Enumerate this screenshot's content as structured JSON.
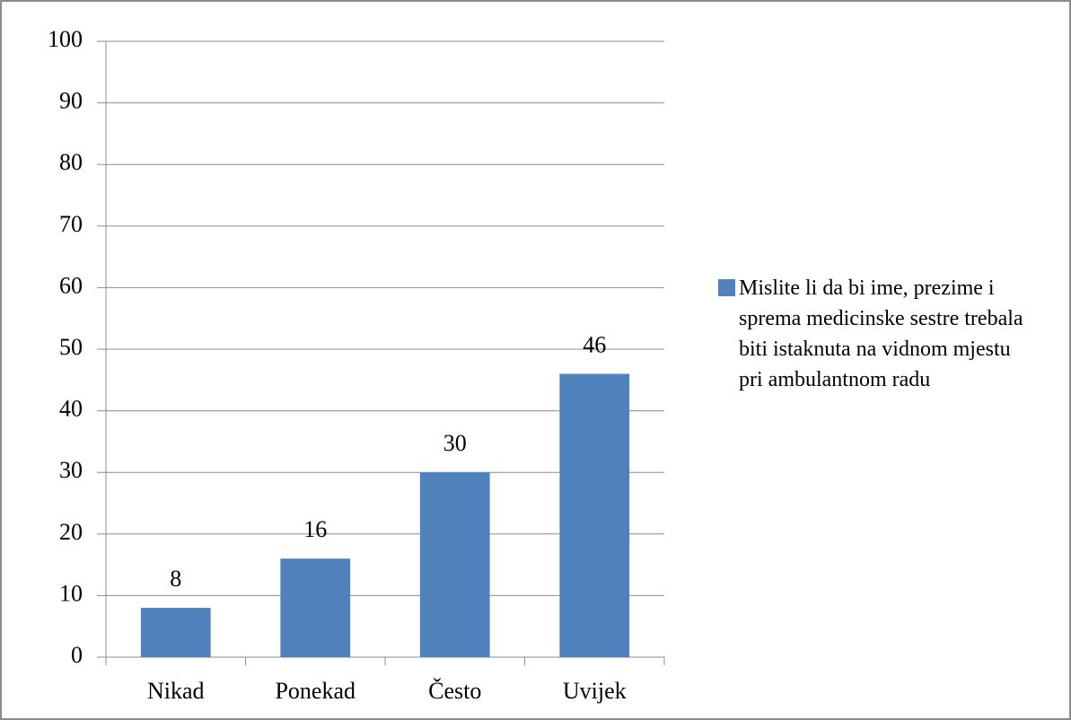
{
  "chart_data": {
    "type": "bar",
    "categories": [
      "Nikad",
      "Ponekad",
      "Često",
      "Uvijek"
    ],
    "series": [
      {
        "name": "Mislite li da bi ime, prezime i sprema medicinske sestre trebala biti istaknuta na vidnom mjestu pri ambulantnom radu",
        "color": "#4f81bd",
        "values": [
          8,
          16,
          30,
          46
        ]
      }
    ],
    "ylim": [
      0,
      100
    ],
    "yticks": [
      0,
      10,
      20,
      30,
      40,
      50,
      60,
      70,
      80,
      90,
      100
    ],
    "grid": true,
    "data_labels": true,
    "legend": "right"
  }
}
